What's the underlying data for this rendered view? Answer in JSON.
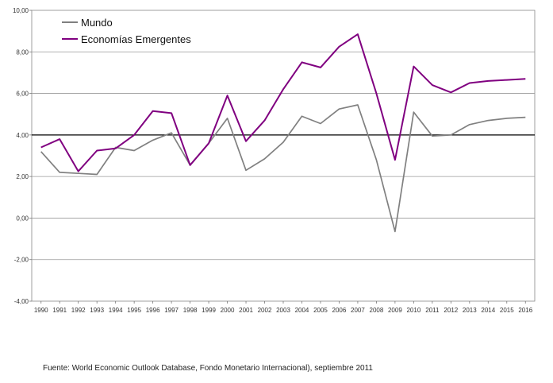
{
  "chart_data": {
    "type": "line",
    "title": "",
    "xlabel": "",
    "ylabel": "",
    "ylim": [
      -4,
      10
    ],
    "yticks": [
      10,
      8,
      6,
      4,
      2,
      0,
      -2,
      -4
    ],
    "ytick_labels": [
      "10,00",
      "8,00",
      "6,00",
      "4,00",
      "2,00",
      "0,00",
      "-2,00",
      "-4,00"
    ],
    "reference_line": 4,
    "x": [
      "1990",
      "1991",
      "1992",
      "1993",
      "1994",
      "1995",
      "1996",
      "1997",
      "1998",
      "1999",
      "2000",
      "2001",
      "2002",
      "2003",
      "2004",
      "2005",
      "2006",
      "2007",
      "2008",
      "2009",
      "2010",
      "2011",
      "2012",
      "2013",
      "2014",
      "2015",
      "2016"
    ],
    "series": [
      {
        "name": "Mundo",
        "color": "#808080",
        "values": [
          3.2,
          2.2,
          2.15,
          2.1,
          3.4,
          3.25,
          3.75,
          4.1,
          2.55,
          3.6,
          4.8,
          2.3,
          2.85,
          3.65,
          4.9,
          4.55,
          5.25,
          5.45,
          2.8,
          -0.65,
          5.1,
          3.95,
          4.0,
          4.5,
          4.7,
          4.8,
          4.85
        ]
      },
      {
        "name": "Economías Emergentes",
        "color": "#800080",
        "values": [
          3.4,
          3.8,
          2.25,
          3.25,
          3.35,
          4.0,
          5.15,
          5.05,
          2.55,
          3.6,
          5.9,
          3.7,
          4.7,
          6.2,
          7.5,
          7.25,
          8.25,
          8.85,
          6.0,
          2.8,
          7.3,
          6.4,
          6.05,
          6.5,
          6.6,
          6.65,
          6.7
        ]
      }
    ]
  },
  "footer": {
    "source": "Fuente: World Economic Outlook Database, Fondo Monetario Internacional), septiembre 2011"
  }
}
